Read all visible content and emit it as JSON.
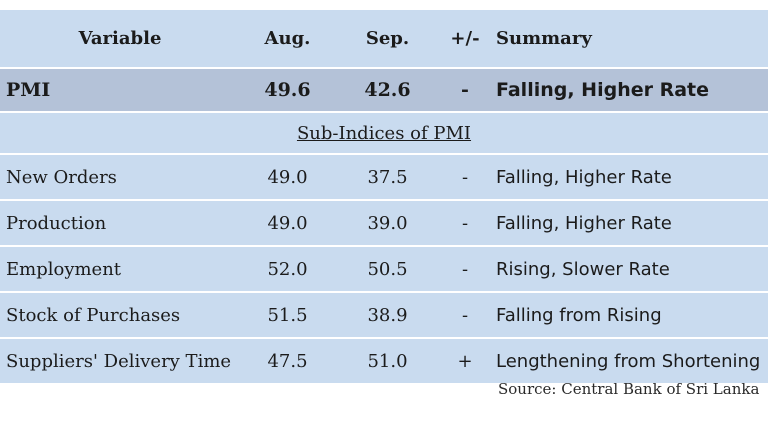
{
  "headers": {
    "variable": "Variable",
    "aug": "Aug.",
    "sep": "Sep.",
    "change": "+/-",
    "summary": "Summary"
  },
  "pmi": {
    "variable": "PMI",
    "aug": "49.6",
    "sep": "42.6",
    "change": "-",
    "summary": "Falling, Higher Rate"
  },
  "sub_indices_title": "Sub-Indices of PMI",
  "rows": [
    {
      "variable": "New Orders",
      "aug": "49.0",
      "sep": "37.5",
      "change": "-",
      "summary": "Falling, Higher Rate"
    },
    {
      "variable": "Production",
      "aug": "49.0",
      "sep": "39.0",
      "change": "-",
      "summary": "Falling, Higher Rate"
    },
    {
      "variable": "Employment",
      "aug": "52.0",
      "sep": "50.5",
      "change": "-",
      "summary": "Rising, Slower Rate"
    },
    {
      "variable": "Stock of Purchases",
      "aug": "51.5",
      "sep": "38.9",
      "change": "-",
      "summary": "Falling from Rising"
    },
    {
      "variable": "Suppliers' Delivery Time",
      "aug": "47.5",
      "sep": "51.0",
      "change": "+",
      "summary": "Lengthening from Shortening"
    }
  ],
  "source": "Source: Central Bank of Sri Lanka",
  "colors": {
    "row_background": "#c9dbef",
    "pmi_row_background": "#b4c2d8",
    "separator": "#ffffff"
  }
}
